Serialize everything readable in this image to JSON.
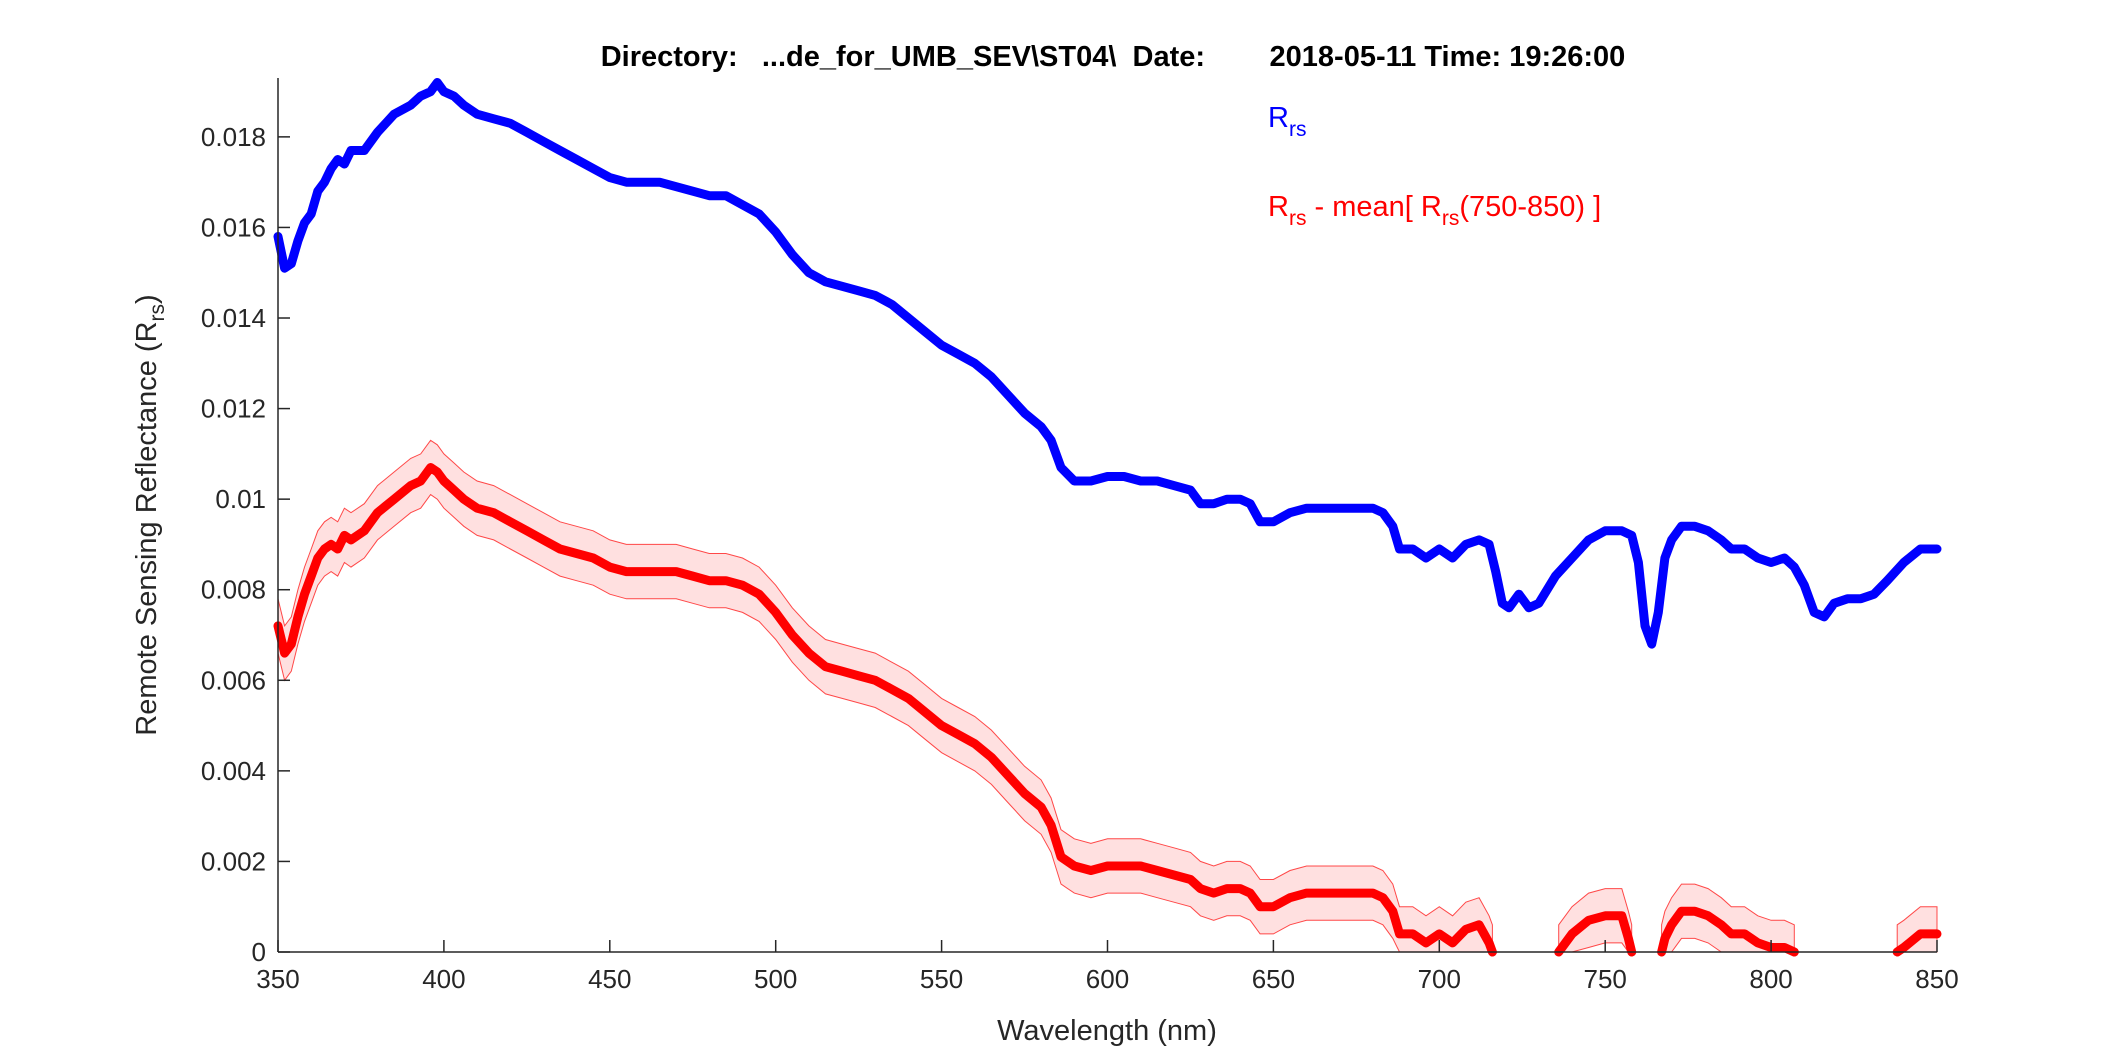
{
  "chart_data": {
    "type": "line",
    "title": "Directory:   ...de_for_UMB_SEV\\ST04\\  Date:        2018-05-11 Time: 19:26:00",
    "xlabel": "Wavelength (nm)",
    "ylabel": "Remote Sensing Reflectance (R",
    "ylabel_sub": "rs",
    "ylabel_close": ")",
    "xlim": [
      350,
      850
    ],
    "ylim": [
      0,
      0.0193
    ],
    "x_ticks": [
      350,
      400,
      450,
      500,
      550,
      600,
      650,
      700,
      750,
      800,
      850
    ],
    "x_tick_labels": [
      "350",
      "400",
      "450",
      "500",
      "550",
      "600",
      "650",
      "700",
      "750",
      "800",
      "850"
    ],
    "y_ticks": [
      0,
      0.002,
      0.004,
      0.006,
      0.008,
      0.01,
      0.012,
      0.014,
      0.016,
      0.018
    ],
    "y_tick_labels": [
      "0",
      "0.002",
      "0.004",
      "0.006",
      "0.008",
      "0.01",
      "0.012",
      "0.014",
      "0.016",
      "0.018"
    ],
    "grid": false,
    "legend_placement": "top-right",
    "legend": [
      {
        "main": "R",
        "sub": "rs",
        "rest": "",
        "sub2": "",
        "tail": "",
        "color": "#0000ff"
      },
      {
        "main": "R",
        "sub": "rs",
        "rest": " - mean[ R",
        "sub2": "rs",
        "tail": "(750-850) ]",
        "color": "#ff0000"
      }
    ],
    "series": [
      {
        "color": "#0000ff",
        "points": [
          [
            350,
            0.0158
          ],
          [
            352,
            0.0151
          ],
          [
            354,
            0.0152
          ],
          [
            356,
            0.0157
          ],
          [
            358,
            0.0161
          ],
          [
            360,
            0.0163
          ],
          [
            362,
            0.0168
          ],
          [
            364,
            0.017
          ],
          [
            366,
            0.0173
          ],
          [
            368,
            0.0175
          ],
          [
            370,
            0.0174
          ],
          [
            372,
            0.0177
          ],
          [
            376,
            0.0177
          ],
          [
            380,
            0.0181
          ],
          [
            385,
            0.0185
          ],
          [
            390,
            0.0187
          ],
          [
            393,
            0.0189
          ],
          [
            396,
            0.019
          ],
          [
            398,
            0.0192
          ],
          [
            400,
            0.019
          ],
          [
            403,
            0.0189
          ],
          [
            406,
            0.0187
          ],
          [
            410,
            0.0185
          ],
          [
            415,
            0.0184
          ],
          [
            420,
            0.0183
          ],
          [
            425,
            0.0181
          ],
          [
            430,
            0.0179
          ],
          [
            435,
            0.0177
          ],
          [
            440,
            0.0175
          ],
          [
            445,
            0.0173
          ],
          [
            450,
            0.0171
          ],
          [
            455,
            0.017
          ],
          [
            460,
            0.017
          ],
          [
            465,
            0.017
          ],
          [
            470,
            0.0169
          ],
          [
            475,
            0.0168
          ],
          [
            480,
            0.0167
          ],
          [
            485,
            0.0167
          ],
          [
            490,
            0.0165
          ],
          [
            495,
            0.0163
          ],
          [
            500,
            0.0159
          ],
          [
            505,
            0.0154
          ],
          [
            510,
            0.015
          ],
          [
            515,
            0.0148
          ],
          [
            520,
            0.0147
          ],
          [
            525,
            0.0146
          ],
          [
            530,
            0.0145
          ],
          [
            535,
            0.0143
          ],
          [
            540,
            0.014
          ],
          [
            545,
            0.0137
          ],
          [
            550,
            0.0134
          ],
          [
            555,
            0.0132
          ],
          [
            560,
            0.013
          ],
          [
            565,
            0.0127
          ],
          [
            570,
            0.0123
          ],
          [
            575,
            0.0119
          ],
          [
            580,
            0.0116
          ],
          [
            583,
            0.0113
          ],
          [
            586,
            0.0107
          ],
          [
            590,
            0.0104
          ],
          [
            595,
            0.0104
          ],
          [
            600,
            0.0105
          ],
          [
            605,
            0.0105
          ],
          [
            610,
            0.0104
          ],
          [
            615,
            0.0104
          ],
          [
            620,
            0.0103
          ],
          [
            625,
            0.0102
          ],
          [
            628,
            0.0099
          ],
          [
            632,
            0.0099
          ],
          [
            636,
            0.01
          ],
          [
            640,
            0.01
          ],
          [
            643,
            0.0099
          ],
          [
            646,
            0.0095
          ],
          [
            650,
            0.0095
          ],
          [
            655,
            0.0097
          ],
          [
            660,
            0.0098
          ],
          [
            665,
            0.0098
          ],
          [
            670,
            0.0098
          ],
          [
            675,
            0.0098
          ],
          [
            680,
            0.0098
          ],
          [
            683,
            0.0097
          ],
          [
            686,
            0.0094
          ],
          [
            688,
            0.0089
          ],
          [
            692,
            0.0089
          ],
          [
            696,
            0.0087
          ],
          [
            700,
            0.0089
          ],
          [
            704,
            0.0087
          ],
          [
            708,
            0.009
          ],
          [
            712,
            0.0091
          ],
          [
            715,
            0.009
          ],
          [
            717,
            0.0084
          ],
          [
            719,
            0.0077
          ],
          [
            721,
            0.0076
          ],
          [
            724,
            0.0079
          ],
          [
            727,
            0.0076
          ],
          [
            730,
            0.0077
          ],
          [
            735,
            0.0083
          ],
          [
            740,
            0.0087
          ],
          [
            745,
            0.0091
          ],
          [
            750,
            0.0093
          ],
          [
            755,
            0.0093
          ],
          [
            758,
            0.0092
          ],
          [
            760,
            0.0086
          ],
          [
            762,
            0.0072
          ],
          [
            764,
            0.0068
          ],
          [
            766,
            0.0075
          ],
          [
            768,
            0.0087
          ],
          [
            770,
            0.0091
          ],
          [
            773,
            0.0094
          ],
          [
            777,
            0.0094
          ],
          [
            781,
            0.0093
          ],
          [
            785,
            0.0091
          ],
          [
            788,
            0.0089
          ],
          [
            792,
            0.0089
          ],
          [
            796,
            0.0087
          ],
          [
            800,
            0.0086
          ],
          [
            804,
            0.0087
          ],
          [
            807,
            0.0085
          ],
          [
            810,
            0.0081
          ],
          [
            813,
            0.0075
          ],
          [
            816,
            0.0074
          ],
          [
            819,
            0.0077
          ],
          [
            823,
            0.0078
          ],
          [
            827,
            0.0078
          ],
          [
            831,
            0.0079
          ],
          [
            835,
            0.0082
          ],
          [
            840,
            0.0086
          ],
          [
            845,
            0.0089
          ],
          [
            850,
            0.0089
          ]
        ]
      },
      {
        "color": "#ff0000",
        "band_halfwidth": 0.0006,
        "points": [
          [
            350,
            0.0072
          ],
          [
            352,
            0.0066
          ],
          [
            354,
            0.0068
          ],
          [
            356,
            0.0074
          ],
          [
            358,
            0.0079
          ],
          [
            360,
            0.0083
          ],
          [
            362,
            0.0087
          ],
          [
            364,
            0.0089
          ],
          [
            366,
            0.009
          ],
          [
            368,
            0.0089
          ],
          [
            370,
            0.0092
          ],
          [
            372,
            0.0091
          ],
          [
            376,
            0.0093
          ],
          [
            380,
            0.0097
          ],
          [
            385,
            0.01
          ],
          [
            390,
            0.0103
          ],
          [
            393,
            0.0104
          ],
          [
            396,
            0.0107
          ],
          [
            398,
            0.0106
          ],
          [
            400,
            0.0104
          ],
          [
            403,
            0.0102
          ],
          [
            406,
            0.01
          ],
          [
            410,
            0.0098
          ],
          [
            415,
            0.0097
          ],
          [
            420,
            0.0095
          ],
          [
            425,
            0.0093
          ],
          [
            430,
            0.0091
          ],
          [
            435,
            0.0089
          ],
          [
            440,
            0.0088
          ],
          [
            445,
            0.0087
          ],
          [
            450,
            0.0085
          ],
          [
            455,
            0.0084
          ],
          [
            460,
            0.0084
          ],
          [
            465,
            0.0084
          ],
          [
            470,
            0.0084
          ],
          [
            475,
            0.0083
          ],
          [
            480,
            0.0082
          ],
          [
            485,
            0.0082
          ],
          [
            490,
            0.0081
          ],
          [
            495,
            0.0079
          ],
          [
            500,
            0.0075
          ],
          [
            505,
            0.007
          ],
          [
            510,
            0.0066
          ],
          [
            515,
            0.0063
          ],
          [
            520,
            0.0062
          ],
          [
            525,
            0.0061
          ],
          [
            530,
            0.006
          ],
          [
            535,
            0.0058
          ],
          [
            540,
            0.0056
          ],
          [
            545,
            0.0053
          ],
          [
            550,
            0.005
          ],
          [
            555,
            0.0048
          ],
          [
            560,
            0.0046
          ],
          [
            565,
            0.0043
          ],
          [
            570,
            0.0039
          ],
          [
            575,
            0.0035
          ],
          [
            580,
            0.0032
          ],
          [
            583,
            0.0028
          ],
          [
            586,
            0.0021
          ],
          [
            590,
            0.0019
          ],
          [
            595,
            0.0018
          ],
          [
            600,
            0.0019
          ],
          [
            605,
            0.0019
          ],
          [
            610,
            0.0019
          ],
          [
            615,
            0.0018
          ],
          [
            620,
            0.0017
          ],
          [
            625,
            0.0016
          ],
          [
            628,
            0.0014
          ],
          [
            632,
            0.0013
          ],
          [
            636,
            0.0014
          ],
          [
            640,
            0.0014
          ],
          [
            643,
            0.0013
          ],
          [
            646,
            0.001
          ],
          [
            650,
            0.001
          ],
          [
            655,
            0.0012
          ],
          [
            660,
            0.0013
          ],
          [
            665,
            0.0013
          ],
          [
            670,
            0.0013
          ],
          [
            675,
            0.0013
          ],
          [
            680,
            0.0013
          ],
          [
            683,
            0.0012
          ],
          [
            686,
            0.0009
          ],
          [
            688,
            0.0004
          ],
          [
            692,
            0.0004
          ],
          [
            696,
            0.0002
          ],
          [
            700,
            0.0004
          ],
          [
            704,
            0.0002
          ],
          [
            708,
            0.0005
          ],
          [
            712,
            0.0006
          ],
          [
            715,
            0.0002
          ],
          [
            716,
            0.0
          ],
          null,
          [
            736,
            0.0
          ],
          [
            740,
            0.0004
          ],
          [
            745,
            0.0007
          ],
          [
            750,
            0.0008
          ],
          [
            755,
            0.0008
          ],
          [
            757,
            0.0003
          ],
          [
            758,
            0.0
          ],
          null,
          [
            767,
            0.0
          ],
          [
            768,
            0.0003
          ],
          [
            770,
            0.0006
          ],
          [
            773,
            0.0009
          ],
          [
            777,
            0.0009
          ],
          [
            781,
            0.0008
          ],
          [
            785,
            0.0006
          ],
          [
            788,
            0.0004
          ],
          [
            792,
            0.0004
          ],
          [
            796,
            0.0002
          ],
          [
            800,
            0.0001
          ],
          [
            804,
            0.0001
          ],
          [
            807,
            0.0
          ],
          null,
          [
            838,
            0.0
          ],
          [
            840,
            0.0001
          ],
          [
            845,
            0.0004
          ],
          [
            850,
            0.0004
          ]
        ]
      }
    ]
  }
}
